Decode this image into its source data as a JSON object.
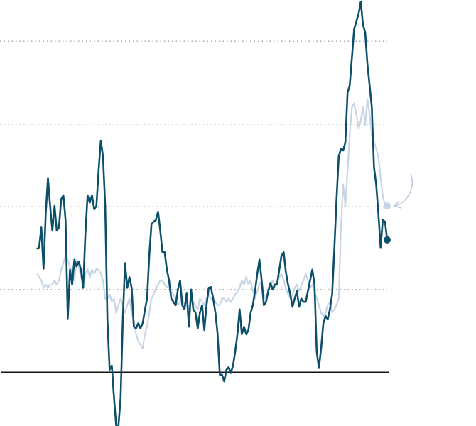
{
  "chart_data": {
    "type": "line",
    "ylim": [
      -0.65,
      4.5
    ],
    "yticks": [
      0,
      1,
      2,
      3,
      4
    ],
    "grid": true,
    "baseline": 0,
    "series": [
      {
        "color": "#c8d5e5",
        "values": [
          1.19,
          1.15,
          1.11,
          1.02,
          1.06,
          1.02,
          1.06,
          1.06,
          1.11,
          1.06,
          1.11,
          1.24,
          1.32,
          1.41,
          1.36,
          1.28,
          1.19,
          1.11,
          1.36,
          1.28,
          1.15,
          1.06,
          1.19,
          1.25,
          1.15,
          1.24,
          1.19,
          1.25,
          1.24,
          1.19,
          1.11,
          0.89,
          0.89,
          0.94,
          0.85,
          0.89,
          0.72,
          0.81,
          0.89,
          0.81,
          0.72,
          0.81,
          0.89,
          0.72,
          0.63,
          0.46,
          0.38,
          0.33,
          0.29,
          0.46,
          0.55,
          0.72,
          0.89,
          0.94,
          1.02,
          1.06,
          1.11,
          1.11,
          1.06,
          1.02,
          1.06,
          0.98,
          0.94,
          0.89,
          0.81,
          0.85,
          0.89,
          0.81,
          0.85,
          0.76,
          0.89,
          0.85,
          0.81,
          0.76,
          0.89,
          0.85,
          0.81,
          0.89,
          0.94,
          0.89,
          0.89,
          0.85,
          0.81,
          0.81,
          0.89,
          0.89,
          0.85,
          0.89,
          0.85,
          0.89,
          0.94,
          0.98,
          1.02,
          1.11,
          1.06,
          1.15,
          1.06,
          1.11,
          0.98,
          0.89,
          0.98,
          1.06,
          1.11,
          0.94,
          0.85,
          1.02,
          1.06,
          1.11,
          1.02,
          1.11,
          1.15,
          1.19,
          1.11,
          1.02,
          0.94,
          0.89,
          0.94,
          1.02,
          1.06,
          0.98,
          1.06,
          1.11,
          1.19,
          1.11,
          1.02,
          1.06,
          0.98,
          0.89,
          0.81,
          0.72,
          0.68,
          0.72,
          0.81,
          0.85,
          0.72,
          0.76,
          0.81,
          0.89,
          1.75,
          2.27,
          2.01,
          2.44,
          2.87,
          3.21,
          3.25,
          3.12,
          2.95,
          3.04,
          3.21,
          2.99,
          3.3,
          3.12,
          2.87,
          2.78,
          2.7,
          2.61,
          2.35,
          2.14,
          2.01,
          2.01
        ]
      },
      {
        "color": "#0c4f6b",
        "values": [
          1.49,
          1.51,
          1.75,
          1.25,
          1.92,
          2.35,
          2.01,
          1.71,
          2.01,
          1.71,
          1.75,
          2.09,
          2.14,
          1.84,
          0.65,
          1.24,
          1.06,
          1.36,
          1.28,
          1.34,
          1.24,
          1.02,
          1.67,
          2.14,
          2.05,
          2.14,
          1.97,
          2.01,
          2.44,
          2.8,
          2.61,
          2.01,
          0.64,
          0.03,
          0.08,
          -0.31,
          -0.65,
          -0.65,
          -0.31,
          0.64,
          1.32,
          1.02,
          1.15,
          1.02,
          0.55,
          0.53,
          0.59,
          0.53,
          0.59,
          0.75,
          0.89,
          1.41,
          1.79,
          1.82,
          1.84,
          1.94,
          1.71,
          1.45,
          1.45,
          1.24,
          1.11,
          0.89,
          0.85,
          0.81,
          1.0,
          1.11,
          0.81,
          0.76,
          0.96,
          0.55,
          1.0,
          0.76,
          0.72,
          0.53,
          0.72,
          0.81,
          0.51,
          0.81,
          1.02,
          1.03,
          0.89,
          0.72,
          0.46,
          -0.03,
          -0.03,
          -0.11,
          0.03,
          0.06,
          -0.01,
          0.08,
          0.25,
          0.46,
          0.76,
          0.46,
          0.55,
          0.46,
          0.51,
          0.72,
          0.81,
          0.98,
          1.19,
          1.36,
          1.11,
          0.81,
          0.85,
          0.98,
          1.08,
          1.0,
          1.06,
          1.06,
          1.24,
          1.41,
          1.45,
          1.21,
          1.06,
          0.94,
          0.79,
          0.89,
          0.98,
          0.79,
          0.89,
          0.85,
          0.85,
          0.98,
          1.11,
          1.24,
          1.06,
          0.25,
          0.05,
          0.29,
          0.59,
          0.68,
          0.64,
          0.76,
          0.94,
          1.49,
          2.09,
          2.61,
          2.7,
          2.68,
          2.78,
          3.38,
          3.47,
          3.81,
          4.15,
          4.24,
          4.33,
          4.48,
          4.2,
          4.11,
          3.73,
          3.47,
          3.21,
          2.48,
          2.27,
          1.92,
          1.51,
          1.84,
          1.82,
          1.6
        ]
      }
    ]
  }
}
